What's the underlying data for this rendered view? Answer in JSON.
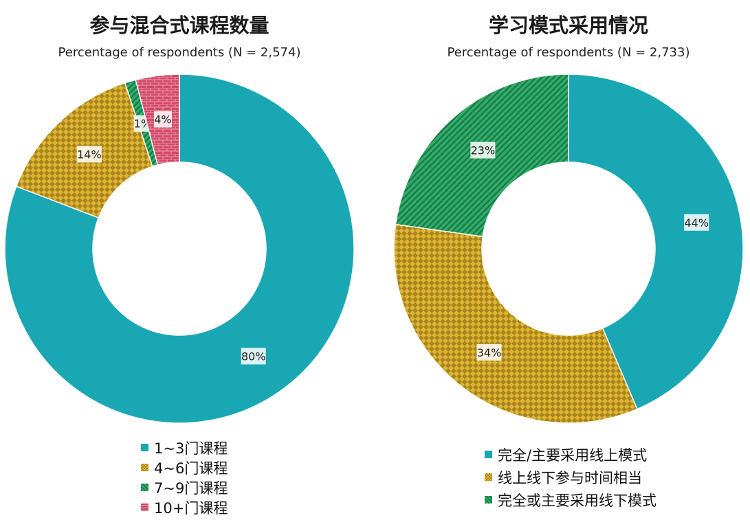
{
  "chart_data": [
    {
      "type": "pie",
      "donut": true,
      "title": "参与混合式课程数量",
      "subtitle": "Percentage of respondents (N = 2,574)",
      "categories": [
        "1~3门课程",
        "4~6门课程",
        "7~9门课程",
        "10+门课程"
      ],
      "values": [
        80,
        14,
        1,
        4
      ],
      "labels": [
        "80%",
        "14%",
        "1%",
        "4%"
      ],
      "colors": [
        "#1aa7b4",
        "#d4a72c",
        "#2fae6a",
        "#d24a68"
      ],
      "patterns": [
        "solid",
        "checker",
        "stripes",
        "brick"
      ],
      "legend_position": "bottom"
    },
    {
      "type": "pie",
      "donut": true,
      "title": "学习模式采用情况",
      "subtitle": "Percentage of respondents (N = 2,733)",
      "categories": [
        "完全/主要采用线上模式",
        "线上线下参与时间相当",
        "完全或主要采用线下模式"
      ],
      "values": [
        44,
        34,
        23
      ],
      "labels": [
        "44%",
        "34%",
        "23%"
      ],
      "colors": [
        "#1aa7b4",
        "#d4a72c",
        "#2fae6a"
      ],
      "patterns": [
        "solid",
        "checker",
        "stripes"
      ],
      "legend_position": "bottom"
    }
  ]
}
